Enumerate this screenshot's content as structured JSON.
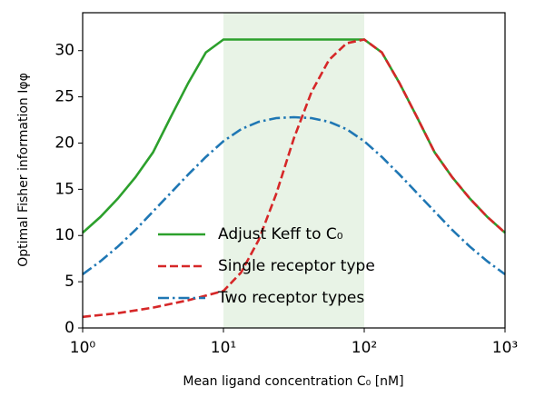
{
  "chart_data": {
    "type": "line",
    "xlabel": "Mean ligand concentration C₀ [nM]",
    "ylabel": "Optimal Fisher information Iφφ",
    "xlog": true,
    "x": [
      1,
      1.334,
      1.778,
      2.371,
      3.162,
      4.217,
      5.623,
      7.499,
      10,
      13.34,
      17.78,
      23.71,
      31.62,
      42.17,
      56.23,
      74.99,
      100,
      133.4,
      177.8,
      237.1,
      316.2,
      421.7,
      562.3,
      749.9,
      1000
    ],
    "series": [
      {
        "name": "Adjust Keff to C₀",
        "color": "#2ca02c",
        "linestyle": "solid",
        "values": [
          10.3,
          12.0,
          14.0,
          16.3,
          19.0,
          22.8,
          26.5,
          29.8,
          31.2,
          31.2,
          31.2,
          31.2,
          31.2,
          31.2,
          31.2,
          31.2,
          31.2,
          29.8,
          26.5,
          22.8,
          19.0,
          16.3,
          14.0,
          12.0,
          10.3
        ]
      },
      {
        "name": "Single receptor type",
        "color": "#d62728",
        "linestyle": "dashed",
        "values": [
          1.2,
          1.4,
          1.6,
          1.9,
          2.2,
          2.6,
          3.0,
          3.5,
          4.0,
          6.0,
          9.5,
          14.5,
          20.5,
          25.5,
          29.0,
          30.8,
          31.2,
          29.8,
          26.5,
          22.8,
          19.0,
          16.3,
          14.0,
          12.0,
          10.3
        ]
      },
      {
        "name": "Two receptor types",
        "color": "#1f77b4",
        "linestyle": "dashdot",
        "values": [
          5.8,
          7.2,
          8.8,
          10.6,
          12.6,
          14.6,
          16.6,
          18.5,
          20.2,
          21.5,
          22.3,
          22.7,
          22.8,
          22.7,
          22.3,
          21.5,
          20.2,
          18.5,
          16.6,
          14.6,
          12.6,
          10.6,
          8.8,
          7.2,
          5.8
        ]
      }
    ],
    "shade": [
      10,
      100
    ],
    "shade_color": "#e8f3e6",
    "xlim": [
      1,
      1000
    ],
    "xticks": [
      {
        "value": 1,
        "label": "10⁰"
      },
      {
        "value": 10,
        "label": "10¹"
      },
      {
        "value": 100,
        "label": "10²"
      },
      {
        "value": 1000,
        "label": "10³"
      }
    ],
    "ylim": [
      0,
      34.1
    ],
    "yticks": [
      0,
      5,
      10,
      15,
      20,
      25,
      30
    ],
    "legend": "lower center"
  }
}
